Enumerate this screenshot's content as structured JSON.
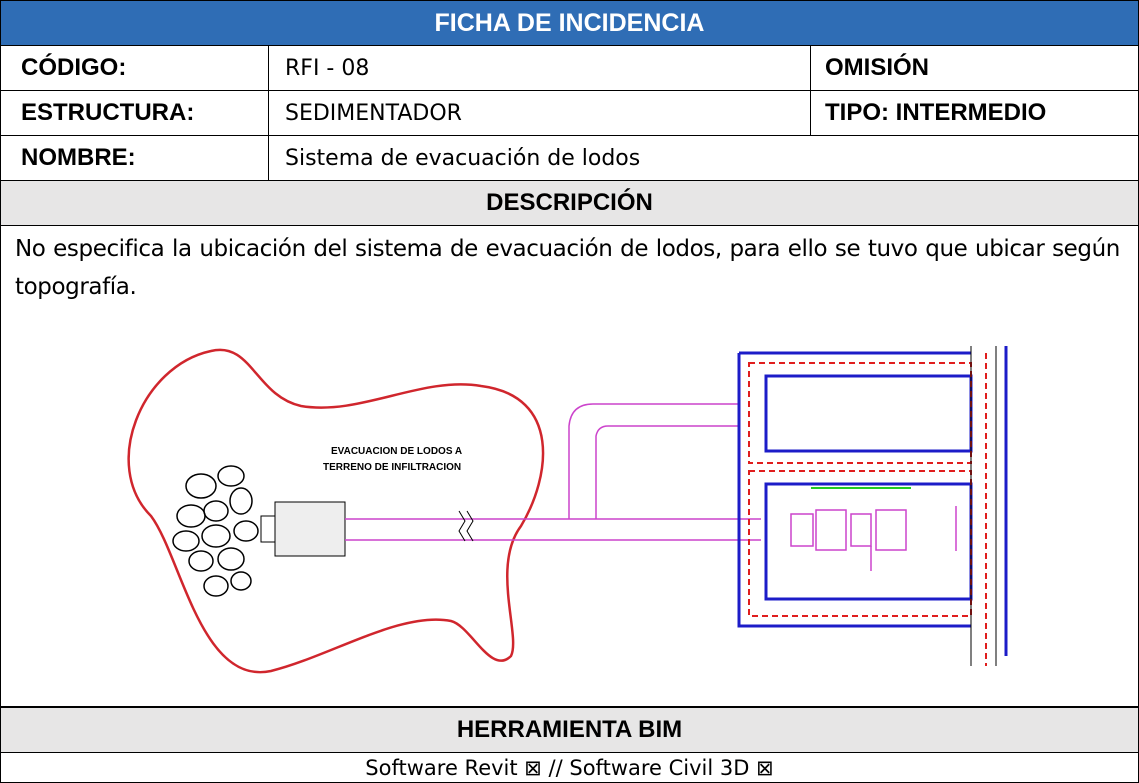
{
  "header": {
    "title": "FICHA DE INCIDENCIA"
  },
  "table": {
    "rows": [
      [
        "CÓDIGO:",
        "RFI - 08",
        "OMISIÓN"
      ],
      [
        "ESTRUCTURA:",
        "SEDIMENTADOR",
        "TIPO: INTERMEDIO"
      ],
      [
        "NOMBRE:",
        "Sistema de evacuación de lodos"
      ]
    ]
  },
  "description": {
    "heading": "DESCRIPCIÓN",
    "text": "No especifica la ubicación del sistema de evacuación de lodos, para ello se tuvo que ubicar según topografía."
  },
  "drawing": {
    "labels": [
      "EVACUACION DE LODOS A",
      "TERRENO DE INFILTRACION"
    ]
  },
  "bim": {
    "heading": "HERRAMIENTA BIM",
    "text": "Software Revit ⊠ // Software Civil 3D ⊠"
  }
}
